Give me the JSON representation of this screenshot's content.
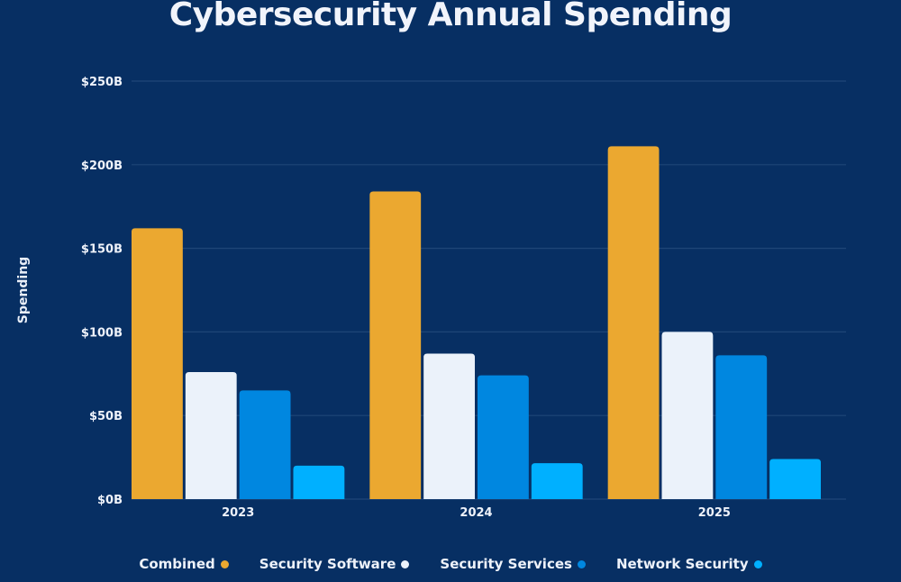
{
  "chart_data": {
    "type": "bar",
    "title": "Cybersecurity Annual Spending",
    "xlabel": "",
    "ylabel": "Spending",
    "ylim": [
      0,
      250
    ],
    "yticks": [
      0,
      50,
      100,
      150,
      200,
      250
    ],
    "ytick_labels": [
      "$0B",
      "$50B",
      "$100B",
      "$150B",
      "$200B",
      "$250B"
    ],
    "categories": [
      "2023",
      "2024",
      "2025"
    ],
    "grid": true,
    "legend_position": "bottom",
    "series": [
      {
        "name": "Combined",
        "color": "#eba830",
        "values": [
          162,
          184,
          211
        ]
      },
      {
        "name": "Security Software",
        "color": "#ebf2fa",
        "values": [
          76,
          87,
          100
        ]
      },
      {
        "name": "Security Services",
        "color": "#0087e0",
        "values": [
          65,
          74,
          86
        ]
      },
      {
        "name": "Network Security",
        "color": "#00b0ff",
        "values": [
          20,
          21.5,
          24
        ]
      }
    ]
  }
}
